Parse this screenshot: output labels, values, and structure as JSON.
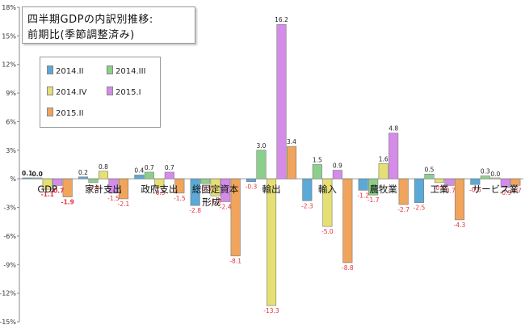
{
  "chart_data": {
    "type": "bar",
    "title": [
      "四半期GDPの内訳別推移:",
      "前期比(季節調整済み)"
    ],
    "xlabel": "",
    "ylabel": "",
    "ylim": [
      -15,
      18
    ],
    "yticks": [
      18,
      15,
      12,
      9,
      6,
      3,
      0,
      -3,
      -6,
      -9,
      -12,
      -15
    ],
    "ytick_labels": [
      "18%",
      "15%",
      "12%",
      "9%",
      "6%",
      "3%",
      "%",
      "-3%",
      "-6%",
      "-9%",
      "-12%",
      "-15%"
    ],
    "grid": false,
    "legend_position": "top-left",
    "categories": [
      "GDP",
      "家計支出",
      "政府支出",
      "総固定資本形成",
      "輸出",
      "輸入",
      "農牧業",
      "工業",
      "サービス業"
    ],
    "series": [
      {
        "name": "2014.II",
        "color": "#5aa9d6",
        "values": [
          0.1,
          0.2,
          0.4,
          -2.8,
          -0.3,
          -2.3,
          -1.2,
          -2.5,
          -0.6
        ]
      },
      {
        "name": "2014.III",
        "color": "#8ccf8c",
        "values": [
          0.0,
          -0.4,
          0.7,
          -0.5,
          3.0,
          1.5,
          -1.7,
          0.5,
          0.3
        ]
      },
      {
        "name": "2014.IV",
        "color": "#e6df74",
        "values": [
          -1.1,
          0.8,
          -0.9,
          -1.8,
          -13.3,
          -5.0,
          1.6,
          -0.4,
          0.0
        ]
      },
      {
        "name": "2015.I",
        "color": "#d58be8",
        "values": [
          -0.7,
          -1.5,
          0.7,
          -2.4,
          16.2,
          0.9,
          4.8,
          -0.7,
          -0.9
        ]
      },
      {
        "name": "2015.II",
        "color": "#f0a45c",
        "values": [
          -1.9,
          -2.1,
          -1.5,
          -8.1,
          3.4,
          -8.8,
          -2.7,
          -4.3,
          -0.7
        ]
      }
    ],
    "data_labels": [
      [
        "0.1",
        "0.0",
        "-1.1",
        "-0.7",
        "-1.9"
      ],
      [
        "0.2",
        "-0.4",
        "0.8",
        "-1.5",
        "-2.1"
      ],
      [
        "0.4",
        "0.7",
        "-0.9",
        "0.7",
        "-1.5"
      ],
      [
        "-2.8",
        "-0.5",
        "-1.8",
        "-2.4",
        "-8.1"
      ],
      [
        "-0.3",
        "3.0",
        "-13.3",
        "16.2",
        "3.4"
      ],
      [
        "-2.3",
        "1.5",
        "-5.0",
        "0.9",
        "-8.8"
      ],
      [
        "-1.2",
        "-1.7",
        "1.6",
        "4.8",
        "-2.7"
      ],
      [
        "-2.5",
        "0.5",
        "-0.4",
        "-0.7",
        "-4.3"
      ],
      [
        "-0.6",
        "0.3",
        "0.0",
        "-0.9",
        "-0.7"
      ]
    ]
  }
}
